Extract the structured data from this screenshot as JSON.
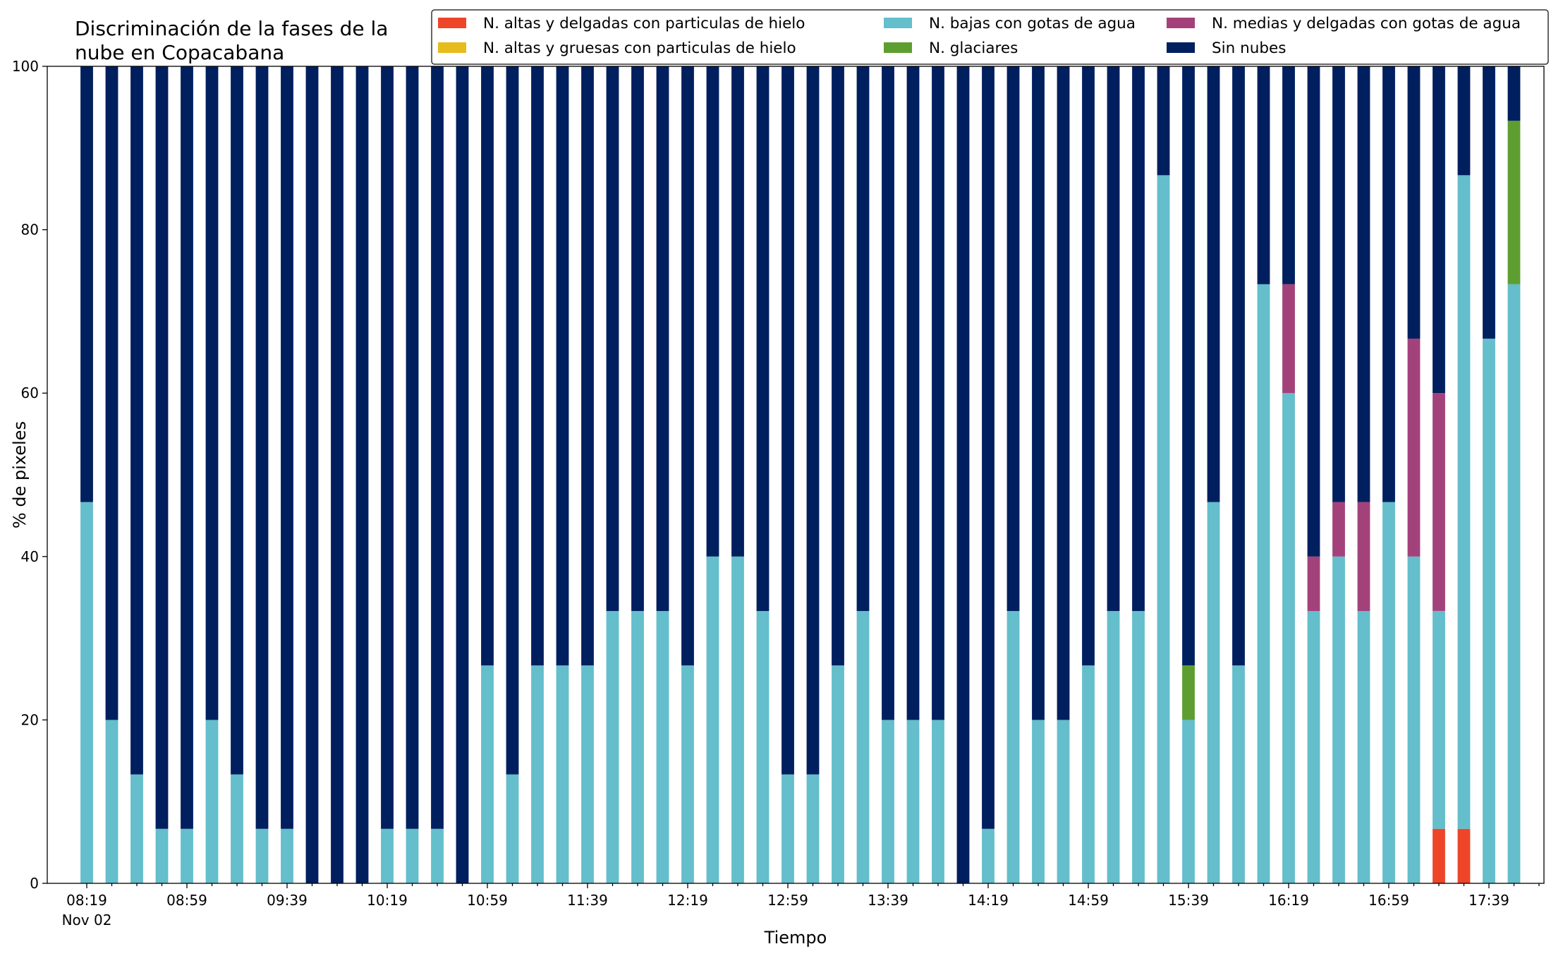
{
  "chart_data": {
    "type": "bar",
    "stacked": true,
    "title": "Discriminación de la fases de la\nnube en Copacabana",
    "xlabel": "Tiempo",
    "ylabel": "% de pixeles",
    "ylim": [
      0,
      100
    ],
    "yticks": [
      0,
      20,
      40,
      60,
      80,
      100
    ],
    "x_tick_labels": [
      "08:19",
      "08:59",
      "09:39",
      "10:19",
      "10:59",
      "11:39",
      "12:19",
      "12:59",
      "13:39",
      "14:19",
      "14:59",
      "15:39",
      "16:19",
      "16:59",
      "17:39"
    ],
    "x_secondary_label": "Nov 02",
    "categories": [
      "08:19",
      "08:29",
      "08:39",
      "08:49",
      "08:59",
      "09:09",
      "09:19",
      "09:29",
      "09:39",
      "09:49",
      "09:59",
      "10:09",
      "10:19",
      "10:29",
      "10:39",
      "10:49",
      "10:59",
      "11:09",
      "11:19",
      "11:29",
      "11:39",
      "11:49",
      "11:59",
      "12:09",
      "12:19",
      "12:29",
      "12:39",
      "12:49",
      "12:59",
      "13:09",
      "13:19",
      "13:29",
      "13:39",
      "13:49",
      "13:59",
      "14:09",
      "14:19",
      "14:29",
      "14:39",
      "14:49",
      "14:59",
      "15:09",
      "15:19",
      "15:29",
      "15:39",
      "15:49",
      "15:59",
      "16:09",
      "16:19",
      "16:29",
      "16:39",
      "16:49",
      "16:59",
      "17:09",
      "17:19",
      "17:29",
      "17:39",
      "17:49"
    ],
    "legend_placement": "top-right",
    "legend_columns": 3,
    "series": [
      {
        "name": "N. altas y delgadas con particulas de hielo",
        "color": "#EE4529",
        "values": [
          0,
          0,
          0,
          0,
          0,
          0,
          0,
          0,
          0,
          0,
          0,
          0,
          0,
          0,
          0,
          0,
          0,
          0,
          0,
          0,
          0,
          0,
          0,
          0,
          0,
          0,
          0,
          0,
          0,
          0,
          0,
          0,
          0,
          0,
          0,
          0,
          0,
          0,
          0,
          0,
          0,
          0,
          0,
          0,
          0,
          0,
          0,
          0,
          0,
          0,
          0,
          0,
          0,
          0,
          6.67,
          6.67,
          0,
          0
        ]
      },
      {
        "name": "N. altas y gruesas con particulas de hielo",
        "color": "#E6BB1C",
        "values": [
          0,
          0,
          0,
          0,
          0,
          0,
          0,
          0,
          0,
          0,
          0,
          0,
          0,
          0,
          0,
          0,
          0,
          0,
          0,
          0,
          0,
          0,
          0,
          0,
          0,
          0,
          0,
          0,
          0,
          0,
          0,
          0,
          0,
          0,
          0,
          0,
          0,
          0,
          0,
          0,
          0,
          0,
          0,
          0,
          0,
          0,
          0,
          0,
          0,
          0,
          0,
          0,
          0,
          0,
          0,
          0,
          0,
          0
        ]
      },
      {
        "name": "N. bajas con gotas de agua",
        "color": "#64BECB",
        "values": [
          46.67,
          20,
          13.33,
          6.67,
          6.67,
          20,
          13.33,
          6.67,
          6.67,
          0,
          0,
          0,
          6.67,
          6.67,
          6.67,
          0,
          26.67,
          13.33,
          26.67,
          26.67,
          26.67,
          33.33,
          33.33,
          33.33,
          26.67,
          40,
          40,
          33.33,
          13.33,
          13.33,
          26.67,
          33.33,
          20,
          20,
          20,
          0,
          6.67,
          33.33,
          20,
          20,
          26.67,
          33.33,
          33.33,
          86.67,
          20,
          46.67,
          26.67,
          73.33,
          60,
          33.33,
          40,
          33.33,
          46.67,
          40,
          26.67,
          80,
          66.67,
          73.33
        ]
      },
      {
        "name": "N. glaciares",
        "color": "#5E9E30",
        "values": [
          0,
          0,
          0,
          0,
          0,
          0,
          0,
          0,
          0,
          0,
          0,
          0,
          0,
          0,
          0,
          0,
          0,
          0,
          0,
          0,
          0,
          0,
          0,
          0,
          0,
          0,
          0,
          0,
          0,
          0,
          0,
          0,
          0,
          0,
          0,
          0,
          0,
          0,
          0,
          0,
          0,
          0,
          0,
          0,
          6.67,
          0,
          0,
          0,
          0,
          0,
          0,
          0,
          0,
          0,
          0,
          0,
          0,
          20
        ]
      },
      {
        "name": "N. medias y delgadas con gotas de agua",
        "color": "#A3427A",
        "values": [
          0,
          0,
          0,
          0,
          0,
          0,
          0,
          0,
          0,
          0,
          0,
          0,
          0,
          0,
          0,
          0,
          0,
          0,
          0,
          0,
          0,
          0,
          0,
          0,
          0,
          0,
          0,
          0,
          0,
          0,
          0,
          0,
          0,
          0,
          0,
          0,
          0,
          0,
          0,
          0,
          0,
          0,
          0,
          0,
          0,
          0,
          0,
          0,
          13.33,
          6.67,
          6.67,
          13.33,
          0,
          26.67,
          26.67,
          0,
          0,
          0
        ]
      },
      {
        "name": "Sin nubes",
        "color": "#001F5E",
        "values": [
          53.33,
          80,
          86.67,
          93.33,
          93.33,
          80,
          86.67,
          93.33,
          93.33,
          100,
          100,
          100,
          93.33,
          93.33,
          93.33,
          100,
          73.33,
          86.67,
          73.33,
          73.33,
          73.33,
          66.67,
          66.67,
          66.67,
          73.33,
          60,
          60,
          66.67,
          86.67,
          86.67,
          73.33,
          66.67,
          80,
          80,
          80,
          100,
          93.33,
          66.67,
          80,
          80,
          73.33,
          66.67,
          66.67,
          13.33,
          73.33,
          53.33,
          73.33,
          26.67,
          26.67,
          60,
          53.33,
          53.33,
          53.33,
          33.33,
          40,
          13.33,
          33.33,
          6.67
        ]
      }
    ],
    "grid": false
  }
}
